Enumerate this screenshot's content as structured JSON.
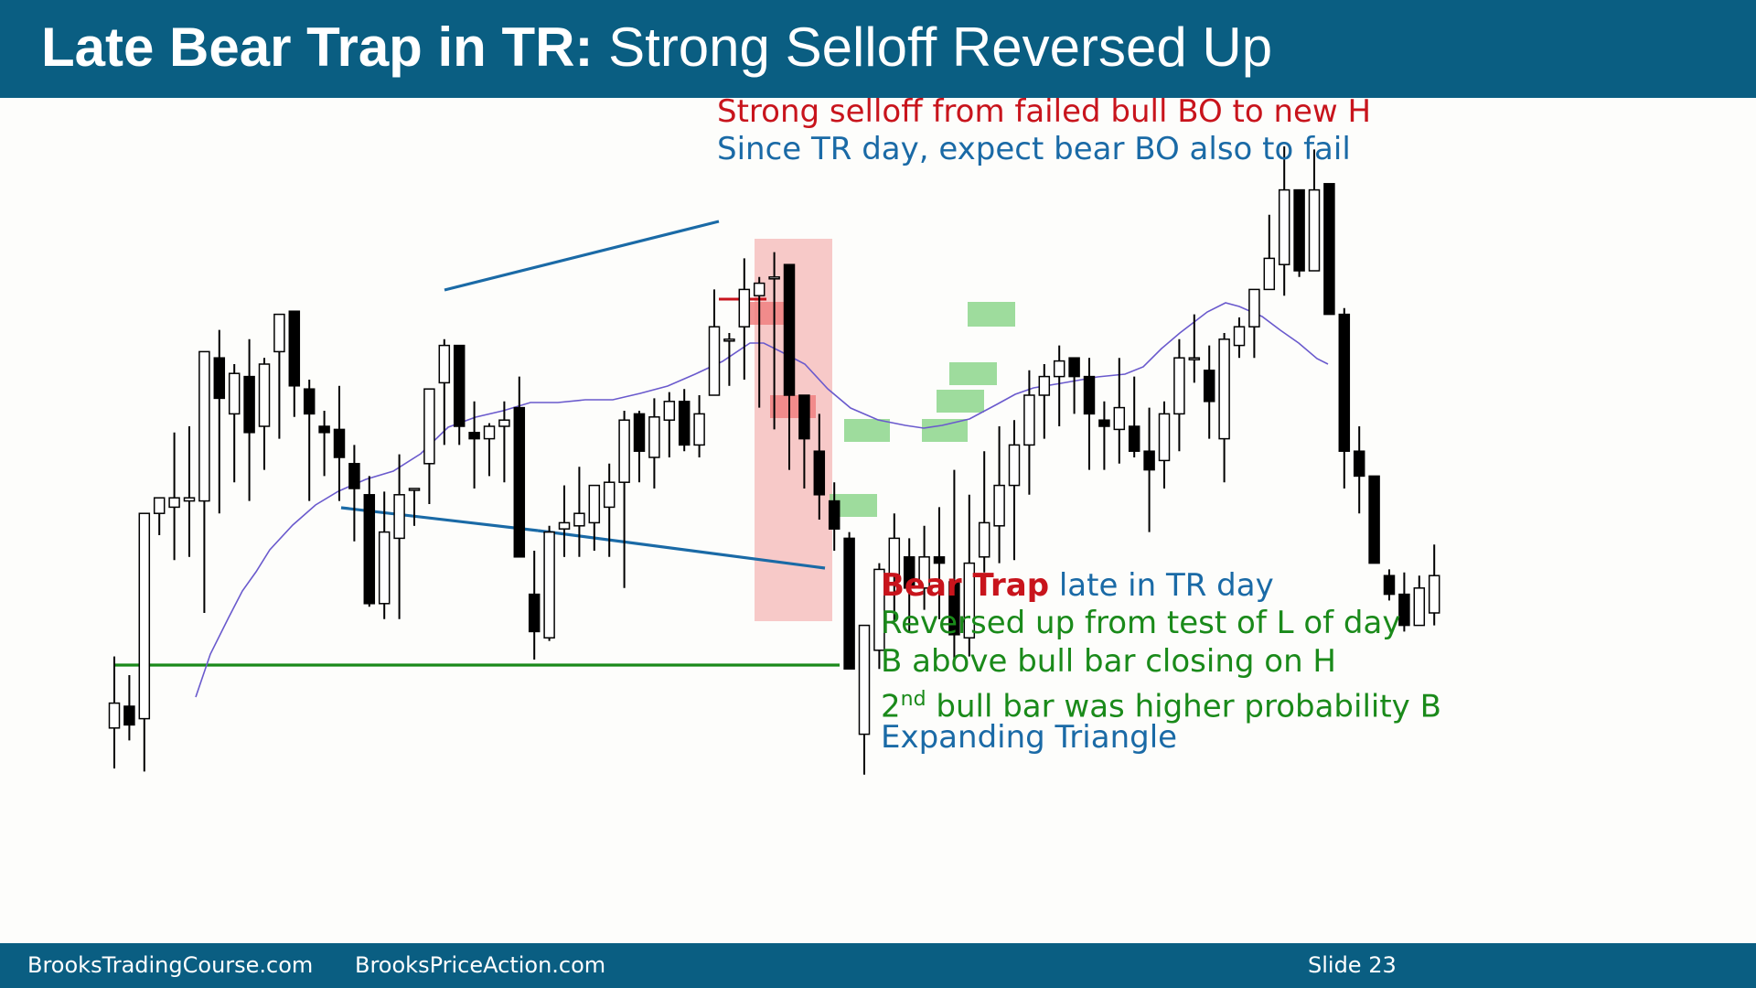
{
  "title": {
    "bold": "Late Bear Trap in TR:",
    "normal": " Strong Selloff Reversed Up"
  },
  "annotations": {
    "top_line1": "Strong selloff from failed bull BO to new H",
    "top_line2": "Since TR day, expect bear BO also to fail",
    "bear_trap_bold": "Bear Trap",
    "bear_trap_rest": " late in TR day",
    "line2": "Reversed up from test of L of day",
    "line3": "B above bull bar closing on H",
    "line4_num": "2",
    "line4_sup": "nd",
    "line4_rest": " bull bar was higher probability B",
    "line5": "Expanding Triangle"
  },
  "footer": {
    "left": "BrooksTradingCourse.com",
    "middle": "BrooksPriceAction.com",
    "slide": "Slide  23"
  },
  "colors": {
    "header": "#0a5e82",
    "red": "#c8141c",
    "blue": "#1a6aa6",
    "green": "#1a8a1a",
    "ema": "#6a5acd",
    "highlight": "#f4a6a6",
    "signal": "#7ed07e"
  },
  "chart_data": {
    "type": "candlestick",
    "price_axis_labels": "none",
    "bars": [
      {
        "o": 31.5,
        "h": 43,
        "l": 25,
        "c": 35.5
      },
      {
        "o": 35,
        "h": 40,
        "l": 29.5,
        "c": 32
      },
      {
        "o": 33,
        "h": 42.5,
        "l": 24.5,
        "c": 66
      },
      {
        "o": 66,
        "h": 67.5,
        "l": 62.5,
        "c": 68.5
      },
      {
        "o": 67,
        "h": 79,
        "l": 58.5,
        "c": 68.5
      },
      {
        "o": 68,
        "h": 80,
        "l": 59,
        "c": 68.5
      },
      {
        "o": 68,
        "h": 87.5,
        "l": 50,
        "c": 92
      },
      {
        "o": 91,
        "h": 95.5,
        "l": 66,
        "c": 84.5
      },
      {
        "o": 82,
        "h": 90,
        "l": 71,
        "c": 88.5
      },
      {
        "o": 88,
        "h": 94,
        "l": 68,
        "c": 79
      },
      {
        "o": 80,
        "h": 91,
        "l": 73,
        "c": 90
      },
      {
        "o": 92,
        "h": 96.5,
        "l": 78,
        "c": 98
      },
      {
        "o": 98.5,
        "h": 98,
        "l": 81.5,
        "c": 86.5
      },
      {
        "o": 86,
        "h": 87.5,
        "l": 68,
        "c": 82
      },
      {
        "o": 80,
        "h": 82.5,
        "l": 72,
        "c": 79
      },
      {
        "o": 79.5,
        "h": 86.5,
        "l": 68,
        "c": 75
      },
      {
        "o": 74,
        "h": 77,
        "l": 61.5,
        "c": 70
      },
      {
        "o": 69,
        "h": 72,
        "l": 51,
        "c": 51.5
      },
      {
        "o": 51.5,
        "h": 69.5,
        "l": 49,
        "c": 63
      },
      {
        "o": 62,
        "h": 75.5,
        "l": 49,
        "c": 69
      },
      {
        "o": 70,
        "h": 70,
        "l": 64,
        "c": 70
      },
      {
        "o": 74,
        "h": 83,
        "l": 67.5,
        "c": 86
      },
      {
        "o": 87,
        "h": 94,
        "l": 77,
        "c": 93
      },
      {
        "o": 93,
        "h": 93,
        "l": 77,
        "c": 80
      },
      {
        "o": 79,
        "h": 84,
        "l": 70,
        "c": 78
      },
      {
        "o": 78,
        "h": 80.5,
        "l": 72,
        "c": 80
      },
      {
        "o": 80,
        "h": 84,
        "l": 71,
        "c": 81
      },
      {
        "o": 83,
        "h": 88,
        "l": 61,
        "c": 59
      },
      {
        "o": 53,
        "h": 60,
        "l": 42.5,
        "c": 47
      },
      {
        "o": 46,
        "h": 64,
        "l": 45.5,
        "c": 63
      },
      {
        "o": 63.5,
        "h": 70.5,
        "l": 59,
        "c": 64.5
      },
      {
        "o": 64,
        "h": 73.5,
        "l": 59,
        "c": 66
      },
      {
        "o": 64.5,
        "h": 70,
        "l": 60,
        "c": 70.5
      },
      {
        "o": 67,
        "h": 74,
        "l": 59,
        "c": 71
      },
      {
        "o": 71,
        "h": 82.5,
        "l": 54,
        "c": 81
      },
      {
        "o": 82,
        "h": 82.5,
        "l": 71,
        "c": 76
      },
      {
        "o": 75,
        "h": 84.5,
        "l": 70,
        "c": 81.5
      },
      {
        "o": 81,
        "h": 85.5,
        "l": 75,
        "c": 84
      },
      {
        "o": 84,
        "h": 86,
        "l": 76,
        "c": 77
      },
      {
        "o": 77,
        "h": 85,
        "l": 75,
        "c": 82
      },
      {
        "o": 85,
        "h": 102,
        "l": 85,
        "c": 96
      },
      {
        "o": 94,
        "h": 95,
        "l": 86.5,
        "c": 94
      },
      {
        "o": 96,
        "h": 107,
        "l": 87.5,
        "c": 102
      },
      {
        "o": 101,
        "h": 104,
        "l": 83,
        "c": 103
      },
      {
        "o": 104,
        "h": 108,
        "l": 79.5,
        "c": 104
      },
      {
        "o": 106,
        "h": 106,
        "l": 73,
        "c": 85
      },
      {
        "o": 85,
        "h": 85,
        "l": 70,
        "c": 78
      },
      {
        "o": 76,
        "h": 82,
        "l": 65,
        "c": 69
      },
      {
        "o": 68,
        "h": 71,
        "l": 60,
        "c": 63.5
      },
      {
        "o": 62,
        "h": 63,
        "l": 47,
        "c": 41
      },
      {
        "o": 30.5,
        "h": 48,
        "l": 24,
        "c": 48
      },
      {
        "o": 44,
        "h": 58,
        "l": 41,
        "c": 57
      },
      {
        "o": 56,
        "h": 66,
        "l": 48.5,
        "c": 62
      },
      {
        "o": 59,
        "h": 62,
        "l": 47,
        "c": 54
      },
      {
        "o": 54,
        "h": 64,
        "l": 50.5,
        "c": 59
      },
      {
        "o": 59,
        "h": 67,
        "l": 49,
        "c": 58
      },
      {
        "o": 55,
        "h": 73,
        "l": 42.5,
        "c": 46.5
      },
      {
        "o": 46,
        "h": 69,
        "l": 43,
        "c": 58
      },
      {
        "o": 59,
        "h": 76,
        "l": 56.5,
        "c": 64.5
      },
      {
        "o": 64,
        "h": 80,
        "l": 58,
        "c": 70.5
      },
      {
        "o": 70.5,
        "h": 81,
        "l": 58.5,
        "c": 77
      },
      {
        "o": 77,
        "h": 89,
        "l": 69,
        "c": 85
      },
      {
        "o": 85,
        "h": 90,
        "l": 78,
        "c": 88
      },
      {
        "o": 88,
        "h": 93,
        "l": 80,
        "c": 90.5
      },
      {
        "o": 91,
        "h": 91,
        "l": 82,
        "c": 88
      },
      {
        "o": 88,
        "h": 91,
        "l": 73,
        "c": 82
      },
      {
        "o": 81,
        "h": 84,
        "l": 73,
        "c": 80
      },
      {
        "o": 79.5,
        "h": 91,
        "l": 74,
        "c": 83
      },
      {
        "o": 80,
        "h": 88,
        "l": 75,
        "c": 76
      },
      {
        "o": 76,
        "h": 83,
        "l": 63,
        "c": 73
      },
      {
        "o": 74.5,
        "h": 84,
        "l": 70,
        "c": 82
      },
      {
        "o": 82,
        "h": 94,
        "l": 76,
        "c": 91
      },
      {
        "o": 91,
        "h": 98,
        "l": 87,
        "c": 91
      },
      {
        "o": 89,
        "h": 93,
        "l": 78,
        "c": 84
      },
      {
        "o": 78,
        "h": 95,
        "l": 71,
        "c": 94
      },
      {
        "o": 93,
        "h": 97.5,
        "l": 91,
        "c": 96
      },
      {
        "o": 96,
        "h": 101.5,
        "l": 91,
        "c": 102
      },
      {
        "o": 102,
        "h": 114,
        "l": 102.5,
        "c": 107
      },
      {
        "o": 106,
        "h": 125,
        "l": 101,
        "c": 118
      },
      {
        "o": 118,
        "h": 117,
        "l": 104,
        "c": 105
      },
      {
        "o": 105,
        "h": 124.5,
        "l": 107,
        "c": 118
      },
      {
        "o": 119,
        "h": 119,
        "l": 102,
        "c": 98
      },
      {
        "o": 98,
        "h": 99,
        "l": 70,
        "c": 76
      },
      {
        "o": 76,
        "h": 80,
        "l": 66,
        "c": 72
      },
      {
        "o": 72,
        "h": 72,
        "l": 59,
        "c": 58
      },
      {
        "o": 56,
        "h": 57,
        "l": 52,
        "c": 53
      },
      {
        "o": 53,
        "h": 56.5,
        "l": 47,
        "c": 48
      },
      {
        "o": 48,
        "h": 56,
        "l": 48,
        "c": 54
      },
      {
        "o": 50,
        "h": 61,
        "l": 48,
        "c": 56
      }
    ],
    "ema": [
      [
        214,
        762
      ],
      [
        230,
        715
      ],
      [
        250,
        675
      ],
      [
        265,
        646
      ],
      [
        280,
        625
      ],
      [
        295,
        601
      ],
      [
        320,
        574
      ],
      [
        345,
        552
      ],
      [
        370,
        537
      ],
      [
        400,
        524
      ],
      [
        430,
        515
      ],
      [
        460,
        496
      ],
      [
        490,
        467
      ],
      [
        520,
        456
      ],
      [
        550,
        449
      ],
      [
        580,
        440
      ],
      [
        610,
        440
      ],
      [
        640,
        437
      ],
      [
        670,
        437
      ],
      [
        700,
        430
      ],
      [
        730,
        422
      ],
      [
        760,
        409
      ],
      [
        790,
        395
      ],
      [
        820,
        375
      ],
      [
        835,
        375
      ],
      [
        855,
        385
      ],
      [
        880,
        398
      ],
      [
        905,
        425
      ],
      [
        930,
        446
      ],
      [
        960,
        459
      ],
      [
        990,
        465
      ],
      [
        1010,
        468
      ],
      [
        1030,
        465
      ],
      [
        1060,
        458
      ],
      [
        1090,
        442
      ],
      [
        1110,
        431
      ],
      [
        1130,
        424
      ],
      [
        1160,
        419
      ],
      [
        1200,
        412
      ],
      [
        1230,
        409
      ],
      [
        1250,
        401
      ],
      [
        1270,
        381
      ],
      [
        1290,
        364
      ],
      [
        1320,
        341
      ],
      [
        1340,
        331
      ],
      [
        1355,
        335
      ],
      [
        1380,
        346
      ],
      [
        1400,
        361
      ],
      [
        1420,
        375
      ],
      [
        1440,
        392
      ],
      [
        1452,
        398
      ]
    ],
    "trendlines": [
      {
        "name": "triangle-top",
        "color": "#1a6aa6",
        "x1": 486,
        "y1": 317,
        "x2": 786,
        "y2": 242
      },
      {
        "name": "triangle-bottom-1",
        "color": "#1a6aa6",
        "x1": 373,
        "y1": 555,
        "x2": 588,
        "y2": 580
      },
      {
        "name": "triangle-bottom-2",
        "color": "#1a6aa6",
        "x1": 588,
        "y1": 580,
        "x2": 902,
        "y2": 621
      },
      {
        "name": "low-of-day",
        "color": "#1a8a1a",
        "x1": 125,
        "y1": 727,
        "x2": 918,
        "y2": 727
      },
      {
        "name": "failed-bo",
        "color": "#c8141c",
        "x1": 786,
        "y1": 327,
        "x2": 838,
        "y2": 327
      }
    ]
  }
}
